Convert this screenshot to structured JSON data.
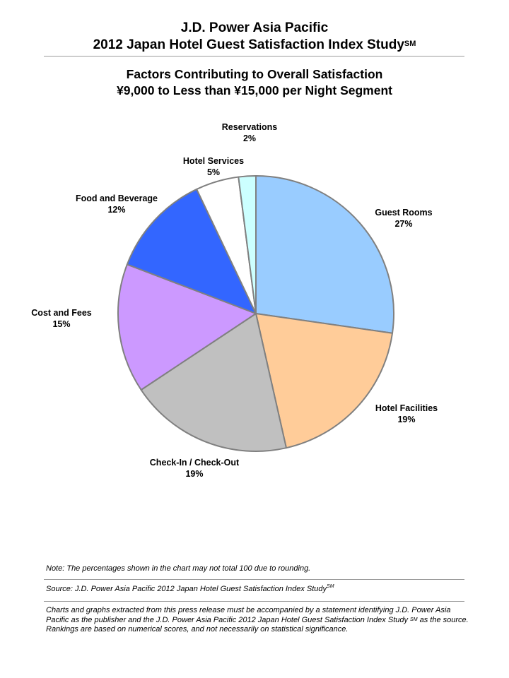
{
  "header": {
    "title_line1": "J.D. Power Asia Pacific",
    "title_line2": "2012 Japan Hotel Guest Satisfaction Index Study",
    "title_superscript": "SM"
  },
  "chart_data": {
    "type": "pie",
    "title": "Factors Contributing to Overall Satisfaction",
    "subtitle": "¥9,000 to Less than ¥15,000 per Night Segment",
    "slices": [
      {
        "label": "Guest Rooms",
        "value": 27,
        "display": "27%",
        "color": "#99CCFF"
      },
      {
        "label": "Hotel Facilities",
        "value": 19,
        "display": "19%",
        "color": "#FFCC99"
      },
      {
        "label": "Check-In / Check-Out",
        "value": 19,
        "display": "19%",
        "color": "#C0C0C0"
      },
      {
        "label": "Cost and Fees",
        "value": 15,
        "display": "15%",
        "color": "#CC99FF"
      },
      {
        "label": "Food and Beverage",
        "value": 12,
        "display": "12%",
        "color": "#3366FF"
      },
      {
        "label": "Hotel Services",
        "value": 5,
        "display": "5%",
        "color": "#FFFFFF"
      },
      {
        "label": "Reservations",
        "value": 2,
        "display": "2%",
        "color": "#CCFFFF"
      }
    ],
    "start": "12 o'clock",
    "direction": "clockwise",
    "border_color": "#808080"
  },
  "footer": {
    "note": "Note: The percentages shown in the chart may not total 100 due to rounding.",
    "source_text": "Source: J.D. Power Asia Pacific 2012 Japan Hotel Guest Satisfaction Index Study",
    "source_superscript": "SM",
    "disclaimer_part1": "Charts and graphs extracted from this press release must be accompanied by a statement identifying J.D. Power Asia Pacific as the publisher and the J.D. Power Asia Pacific 2012 Japan Hotel Guest Satisfaction Index Study ",
    "disclaimer_superscript": "SM",
    "disclaimer_part2": " as the source. Rankings are based on numerical scores, and not necessarily on statistical significance."
  }
}
